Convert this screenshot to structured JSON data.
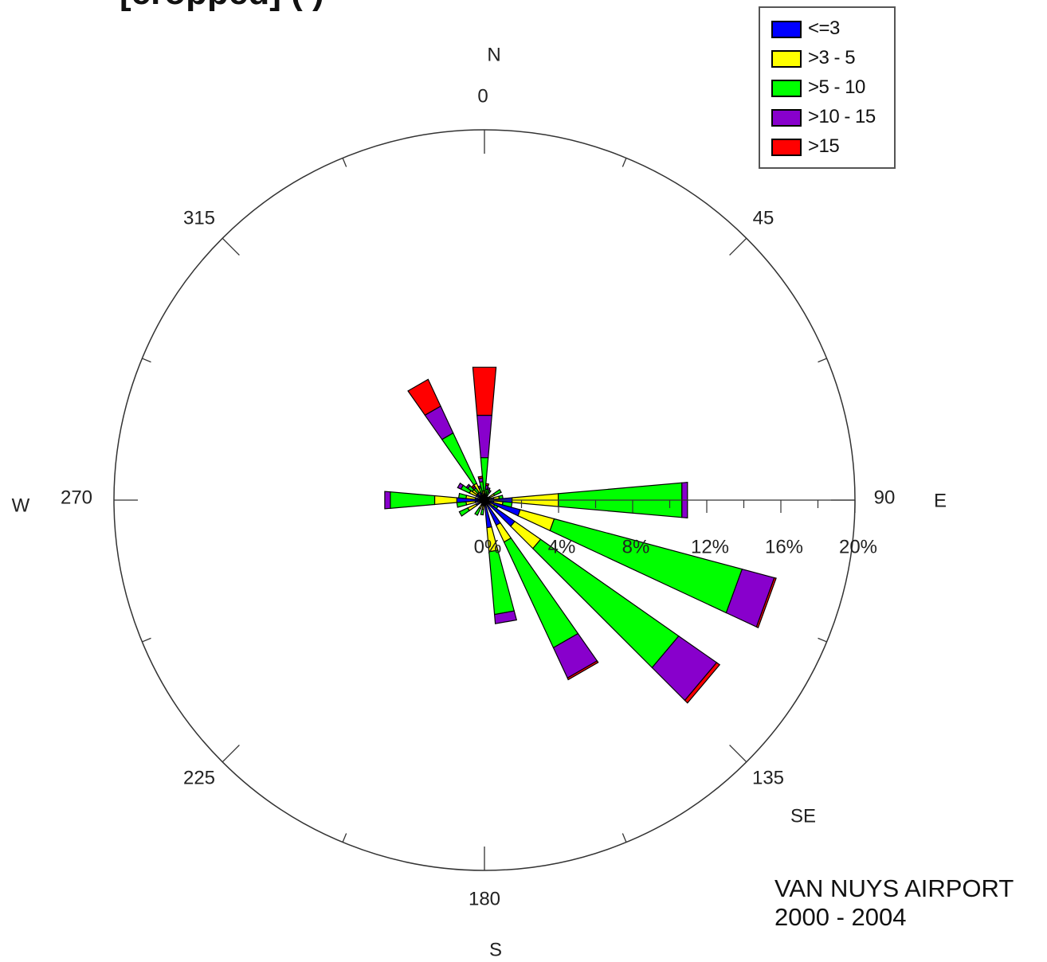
{
  "page_title": "[cropped] (            )",
  "station": {
    "name": "VAN NUYS AIRPORT",
    "period": "2000 - 2004"
  },
  "chart_data": {
    "type": "wind-rose",
    "direction_ticks": [
      "0",
      "45",
      "90",
      "135",
      "180",
      "225",
      "270",
      "315"
    ],
    "direction_tick_values": [
      0,
      45,
      90,
      135,
      180,
      225,
      270,
      315
    ],
    "cardinals": [
      {
        "label": "N",
        "deg": 0
      },
      {
        "label": "E",
        "deg": 90
      },
      {
        "label": "SE",
        "deg": 135
      },
      {
        "label": "S",
        "deg": 180
      },
      {
        "label": "W",
        "deg": 270
      }
    ],
    "radial_axis": {
      "ticks": [
        "0%",
        "4%",
        "8%",
        "12%",
        "16%",
        "20%"
      ],
      "tick_values": [
        0,
        4,
        8,
        12,
        16,
        20
      ],
      "max": 20,
      "units": "%"
    },
    "legend": {
      "position": "top-right",
      "entries": [
        {
          "label": "<=3",
          "color": "#0000ff"
        },
        {
          "label": ">3 - 5",
          "color": "#ffff00"
        },
        {
          "label": ">5 - 10",
          "color": "#00ff00"
        },
        {
          "label": ">10 - 15",
          "color": "#8800cc"
        },
        {
          "label": ">15",
          "color": "#ff0000"
        }
      ]
    },
    "sector_width_deg": 10,
    "petals": [
      {
        "dir": 0,
        "segments": [
          0.2,
          0.3,
          1.8,
          2.3,
          2.6
        ]
      },
      {
        "dir": 10,
        "segments": [
          0.2,
          0.1,
          0.3,
          0.2,
          0.1
        ]
      },
      {
        "dir": 20,
        "segments": [
          0.2,
          0.1,
          0.3,
          0.1,
          0.0
        ]
      },
      {
        "dir": 30,
        "segments": [
          0.2,
          0.1,
          0.2,
          0.1,
          0.0
        ]
      },
      {
        "dir": 60,
        "segments": [
          0.3,
          0.3,
          0.4,
          0.0,
          0.0
        ]
      },
      {
        "dir": 80,
        "segments": [
          0.5,
          0.3,
          0.2,
          0.0,
          0.0
        ]
      },
      {
        "dir": 90,
        "segments": [
          1.5,
          2.5,
          6.7,
          0.3,
          0.0
        ]
      },
      {
        "dir": 100,
        "segments": [
          0.5,
          0.5,
          0.5,
          0.0,
          0.0
        ]
      },
      {
        "dir": 110,
        "segments": [
          2.0,
          1.9,
          10.5,
          1.8,
          0.1
        ]
      },
      {
        "dir": 120,
        "segments": [
          0.3,
          0.3,
          0.2,
          0.0,
          0.0
        ]
      },
      {
        "dir": 130,
        "segments": [
          2.0,
          1.7,
          9.1,
          2.5,
          0.2
        ]
      },
      {
        "dir": 150,
        "segments": [
          1.5,
          1.0,
          6.3,
          1.8,
          0.1
        ]
      },
      {
        "dir": 170,
        "segments": [
          1.5,
          1.3,
          3.4,
          0.5,
          0.0
        ]
      },
      {
        "dir": 190,
        "segments": [
          0.3,
          0.2,
          0.3,
          0.0,
          0.0
        ]
      },
      {
        "dir": 210,
        "segments": [
          0.3,
          0.2,
          0.4,
          0.0,
          0.0
        ]
      },
      {
        "dir": 240,
        "segments": [
          0.5,
          0.5,
          0.5,
          0.0,
          0.0
        ]
      },
      {
        "dir": 260,
        "segments": [
          0.5,
          0.5,
          0.5,
          0.0,
          0.0
        ]
      },
      {
        "dir": 270,
        "segments": [
          1.5,
          1.2,
          2.4,
          0.3,
          0.0
        ]
      },
      {
        "dir": 280,
        "segments": [
          0.5,
          0.5,
          0.4,
          0.0,
          0.0
        ]
      },
      {
        "dir": 300,
        "segments": [
          0.5,
          0.4,
          0.5,
          0.2,
          0.0
        ]
      },
      {
        "dir": 310,
        "segments": [
          0.5,
          0.3,
          0.3,
          0.1,
          0.0
        ]
      },
      {
        "dir": 320,
        "segments": [
          0.3,
          0.2,
          0.3,
          0.1,
          0.1
        ]
      },
      {
        "dir": 330,
        "segments": [
          0.5,
          0.5,
          3.0,
          1.6,
          1.6
        ]
      },
      {
        "dir": 340,
        "segments": [
          0.2,
          0.2,
          0.3,
          0.1,
          0.0
        ]
      },
      {
        "dir": 350,
        "segments": [
          0.3,
          0.2,
          0.5,
          0.2,
          0.1
        ]
      }
    ]
  }
}
